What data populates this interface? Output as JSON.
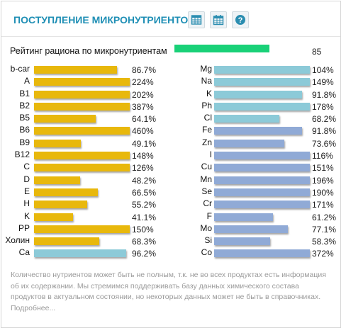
{
  "header": {
    "title": "ПОСТУПЛЕНИЕ МИКРОНУТРИЕНТОВ",
    "buttons": [
      {
        "name": "table-view-button",
        "icon": "table-icon"
      },
      {
        "name": "calendar-button",
        "icon": "calendar-icon"
      },
      {
        "name": "help-button",
        "icon": "question-icon"
      }
    ]
  },
  "rating": {
    "label": "Рейтинг рациона по микронутриентам",
    "value": "85",
    "level_percent": 85,
    "color": "#19d178"
  },
  "colors": {
    "vitamin_bar": "#e8b80c",
    "mineral_bar_light": "#8ccad8",
    "mineral_bar_dark": "#90aad6",
    "title": "#1f8fb5"
  },
  "left_column": [
    {
      "name": "b-car",
      "value": "86.7%",
      "pct": 86.7
    },
    {
      "name": "A",
      "value": "224%",
      "pct": 224
    },
    {
      "name": "B1",
      "value": "202%",
      "pct": 202
    },
    {
      "name": "B2",
      "value": "387%",
      "pct": 387
    },
    {
      "name": "B5",
      "value": "64.1%",
      "pct": 64.1
    },
    {
      "name": "B6",
      "value": "460%",
      "pct": 460
    },
    {
      "name": "B9",
      "value": "49.1%",
      "pct": 49.1
    },
    {
      "name": "B12",
      "value": "148%",
      "pct": 148
    },
    {
      "name": "C",
      "value": "126%",
      "pct": 126
    },
    {
      "name": "D",
      "value": "48.2%",
      "pct": 48.2
    },
    {
      "name": "E",
      "value": "66.5%",
      "pct": 66.5
    },
    {
      "name": "H",
      "value": "55.2%",
      "pct": 55.2
    },
    {
      "name": "K",
      "value": "41.1%",
      "pct": 41.1
    },
    {
      "name": "PP",
      "value": "150%",
      "pct": 150
    },
    {
      "name": "Холин",
      "value": "68.3%",
      "pct": 68.3
    },
    {
      "name": "Ca",
      "value": "96.2%",
      "pct": 96.2,
      "color": "light"
    }
  ],
  "right_column": [
    {
      "name": "Mg",
      "value": "104%",
      "pct": 104,
      "color": "light"
    },
    {
      "name": "Na",
      "value": "149%",
      "pct": 149,
      "color": "light"
    },
    {
      "name": "K",
      "value": "91.8%",
      "pct": 91.8,
      "color": "light"
    },
    {
      "name": "Ph",
      "value": "178%",
      "pct": 178,
      "color": "light"
    },
    {
      "name": "Cl",
      "value": "68.2%",
      "pct": 68.2,
      "color": "light"
    },
    {
      "name": "Fe",
      "value": "91.8%",
      "pct": 91.8,
      "color": "dark"
    },
    {
      "name": "Zn",
      "value": "73.6%",
      "pct": 73.6,
      "color": "dark"
    },
    {
      "name": "I",
      "value": "116%",
      "pct": 116,
      "color": "dark"
    },
    {
      "name": "Cu",
      "value": "151%",
      "pct": 151,
      "color": "dark"
    },
    {
      "name": "Mn",
      "value": "196%",
      "pct": 196,
      "color": "dark"
    },
    {
      "name": "Se",
      "value": "190%",
      "pct": 190,
      "color": "dark"
    },
    {
      "name": "Cr",
      "value": "171%",
      "pct": 171,
      "color": "dark"
    },
    {
      "name": "F",
      "value": "61.2%",
      "pct": 61.2,
      "color": "dark"
    },
    {
      "name": "Mo",
      "value": "77.1%",
      "pct": 77.1,
      "color": "dark"
    },
    {
      "name": "Si",
      "value": "58.3%",
      "pct": 58.3,
      "color": "dark"
    },
    {
      "name": "Co",
      "value": "372%",
      "pct": 372,
      "color": "dark"
    }
  ],
  "note": "Количество нутриентов может быть не полным, т.к. не во всех продуктах есть информация об их содержании. Мы стремимся поддерживать базу данных химического состава продуктов в актуальном состоянии, но некоторых данных может не быть в справочниках. Подробнее..."
}
